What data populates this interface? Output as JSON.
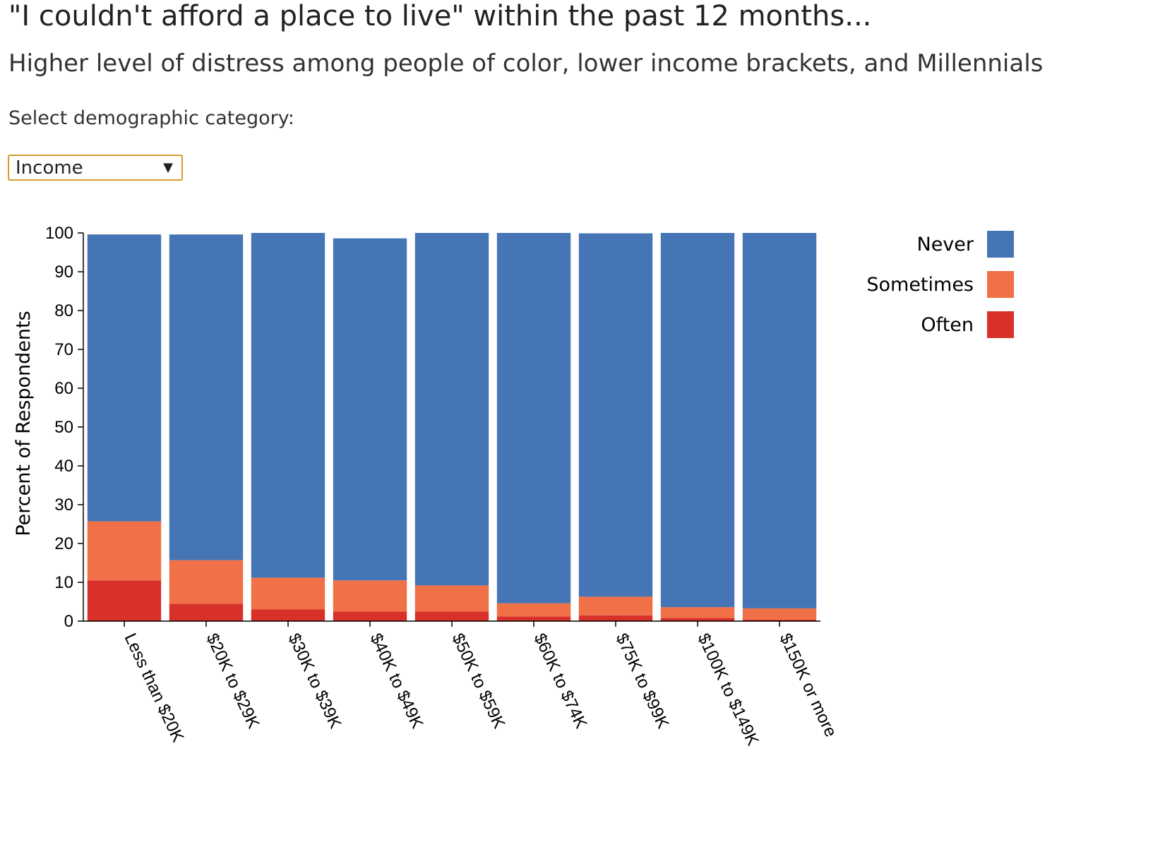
{
  "header": {
    "title": "\"I couldn't afford a place to live\" within the past 12 months...",
    "subtitle": "Higher level of distress among people of color, lower income brackets, and Millennials"
  },
  "controls": {
    "select_label": "Select demographic category:",
    "selected_value": "Income"
  },
  "chart_data": {
    "type": "bar",
    "stacked": true,
    "categories": [
      "Less than $20K",
      "$20K to $29K",
      "$30K to $39K",
      "$40K to $49K",
      "$50K to $59K",
      "$60K to $74K",
      "$75K to $99K",
      "$100K to $149K",
      "$150K or more"
    ],
    "series": [
      {
        "name": "Often",
        "color": "#d7312a",
        "values": [
          10.5,
          4.5,
          3.0,
          2.5,
          2.5,
          1.2,
          1.5,
          0.8,
          0.4
        ]
      },
      {
        "name": "Sometimes",
        "color": "#f07047",
        "values": [
          15.2,
          11.2,
          8.2,
          8.0,
          6.7,
          3.4,
          4.8,
          2.8,
          2.9
        ]
      },
      {
        "name": "Never",
        "color": "#4575b4",
        "values": [
          73.9,
          83.9,
          88.8,
          88.1,
          90.8,
          95.4,
          93.6,
          96.4,
          96.7
        ]
      }
    ],
    "ylabel": "Percent of Respondents",
    "xlabel": "",
    "ylim": [
      0,
      100
    ],
    "yticks": [
      0,
      10,
      20,
      30,
      40,
      50,
      60,
      70,
      80,
      90,
      100
    ],
    "legend": {
      "position": "top-right",
      "items": [
        "Never",
        "Sometimes",
        "Often"
      ]
    },
    "grid": false
  }
}
